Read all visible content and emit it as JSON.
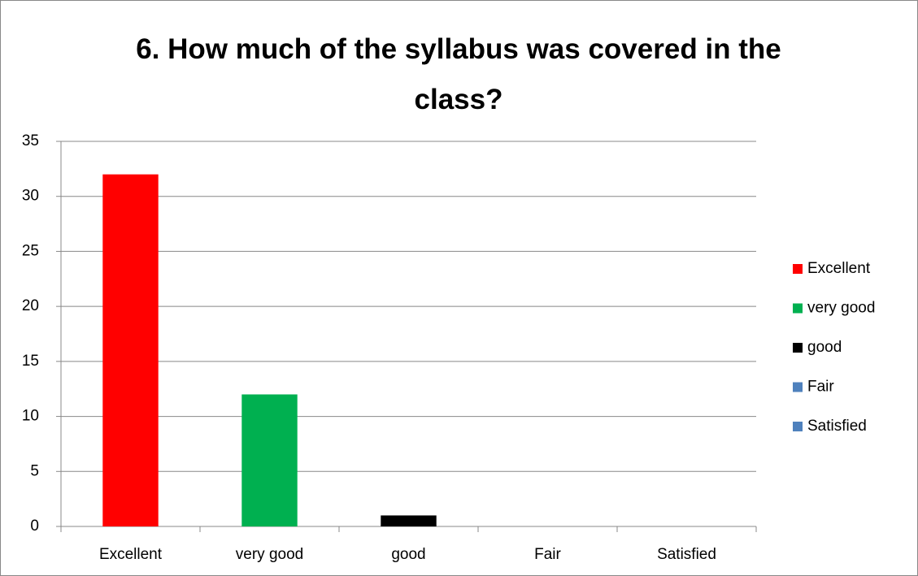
{
  "chart_data": {
    "type": "bar",
    "title": "6. How much of the syllabus was covered in the class?",
    "categories": [
      "Excellent",
      "very good",
      "good",
      "Fair",
      "Satisfied"
    ],
    "values": [
      32,
      12,
      1,
      0,
      0
    ],
    "colors": [
      "#ff0000",
      "#00b050",
      "#000000",
      "#4f81bd",
      "#4f81bd"
    ],
    "ylim": [
      0,
      35
    ],
    "yticks": [
      0,
      5,
      10,
      15,
      20,
      25,
      30,
      35
    ],
    "grid": true,
    "legend": "right"
  }
}
